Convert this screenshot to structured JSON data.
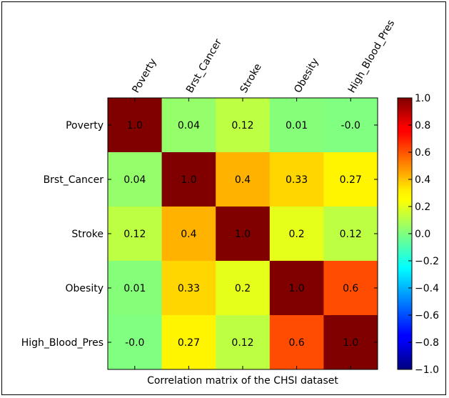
{
  "chart_data": {
    "type": "heatmap",
    "title": "Correlation matrix of the CHSI dataset",
    "x_labels": [
      "Poverty",
      "Brst_Cancer",
      "Stroke",
      "Obesity",
      "High_Blood_Pres"
    ],
    "y_labels": [
      "Poverty",
      "Brst_Cancer",
      "Stroke",
      "Obesity",
      "High_Blood_Pres"
    ],
    "values": [
      [
        1.0,
        0.04,
        0.12,
        0.01,
        -0.0
      ],
      [
        0.04,
        1.0,
        0.4,
        0.33,
        0.27
      ],
      [
        0.12,
        0.4,
        1.0,
        0.2,
        0.12
      ],
      [
        0.01,
        0.33,
        0.2,
        1.0,
        0.6
      ],
      [
        -0.0,
        0.27,
        0.12,
        0.6,
        1.0
      ]
    ],
    "cell_labels": [
      [
        "1.0",
        "0.04",
        "0.12",
        "0.01",
        "-0.0"
      ],
      [
        "0.04",
        "1.0",
        "0.4",
        "0.33",
        "0.27"
      ],
      [
        "0.12",
        "0.4",
        "1.0",
        "0.2",
        "0.12"
      ],
      [
        "0.01",
        "0.33",
        "0.2",
        "1.0",
        "0.6"
      ],
      [
        "-0.0",
        "0.27",
        "0.12",
        "0.6",
        "1.0"
      ]
    ],
    "colormap": "jet",
    "vmin": -1.0,
    "vmax": 1.0,
    "colorbar": {
      "ticks": [
        1.0,
        0.8,
        0.6,
        0.4,
        0.2,
        0.0,
        -0.2,
        -0.4,
        -0.6,
        -0.8,
        -1.0
      ],
      "tick_labels": [
        "1.0",
        "0.8",
        "0.6",
        "0.4",
        "0.2",
        "0.0",
        "−0.2",
        "−0.4",
        "−0.6",
        "−0.8",
        "−1.0"
      ],
      "position": "right"
    }
  }
}
